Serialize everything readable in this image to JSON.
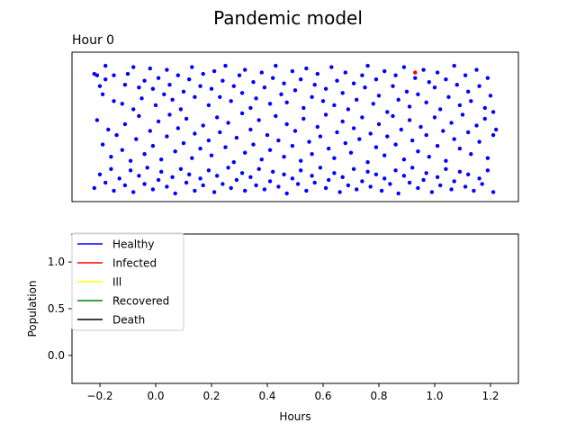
{
  "figure": {
    "title": "Pandemic model"
  },
  "chart_data": [
    {
      "type": "scatter",
      "title": "Hour 0",
      "xlim": [
        -0.3,
        1.3
      ],
      "ylim": [
        -0.05,
        1.05
      ],
      "axes_visible": false,
      "point_colors": {
        "healthy": "#0000ff",
        "infected": "#ff0000"
      },
      "note_points": "Simulated individuals; values are x in [-0.3,1.3], y in [-0.05,1.05]",
      "points": {
        "healthy": [
          [
            -0.22,
            0.89
          ],
          [
            -0.21,
            0.88
          ],
          [
            -0.2,
            0.8
          ],
          [
            -0.19,
            0.74
          ],
          [
            -0.18,
            0.85
          ],
          [
            -0.18,
            0.95
          ],
          [
            -0.15,
            0.88
          ],
          [
            -0.15,
            0.69
          ],
          [
            -0.12,
            0.67
          ],
          [
            -0.11,
            0.81
          ],
          [
            -0.1,
            0.89
          ],
          [
            -0.08,
            0.94
          ],
          [
            -0.08,
            0.63
          ],
          [
            -0.06,
            0.79
          ],
          [
            -0.05,
            0.71
          ],
          [
            -0.04,
            0.84
          ],
          [
            -0.02,
            0.93
          ],
          [
            -0.01,
            0.78
          ],
          [
            0.0,
            0.66
          ],
          [
            0.01,
            0.86
          ],
          [
            0.03,
            0.74
          ],
          [
            0.04,
            0.92
          ],
          [
            0.05,
            0.81
          ],
          [
            0.06,
            0.7
          ],
          [
            0.08,
            0.88
          ],
          [
            0.09,
            0.63
          ],
          [
            0.1,
            0.76
          ],
          [
            0.12,
            0.85
          ],
          [
            0.13,
            0.94
          ],
          [
            0.14,
            0.72
          ],
          [
            0.16,
            0.8
          ],
          [
            0.17,
            0.89
          ],
          [
            0.19,
            0.66
          ],
          [
            0.2,
            0.78
          ],
          [
            0.21,
            0.91
          ],
          [
            0.23,
            0.72
          ],
          [
            0.24,
            0.84
          ],
          [
            0.25,
            0.95
          ],
          [
            0.27,
            0.69
          ],
          [
            0.28,
            0.8
          ],
          [
            0.3,
            0.88
          ],
          [
            0.31,
            0.75
          ],
          [
            0.32,
            0.92
          ],
          [
            0.34,
            0.64
          ],
          [
            0.35,
            0.83
          ],
          [
            0.36,
            0.71
          ],
          [
            0.38,
            0.9
          ],
          [
            0.39,
            0.79
          ],
          [
            0.41,
            0.67
          ],
          [
            0.42,
            0.86
          ],
          [
            0.43,
            0.95
          ],
          [
            0.45,
            0.74
          ],
          [
            0.46,
            0.82
          ],
          [
            0.47,
            0.68
          ],
          [
            0.49,
            0.91
          ],
          [
            0.5,
            0.77
          ],
          [
            0.52,
            0.85
          ],
          [
            0.53,
            0.64
          ],
          [
            0.54,
            0.93
          ],
          [
            0.56,
            0.72
          ],
          [
            0.57,
            0.81
          ],
          [
            0.58,
            0.89
          ],
          [
            0.6,
            0.69
          ],
          [
            0.61,
            0.78
          ],
          [
            0.63,
            0.94
          ],
          [
            0.64,
            0.66
          ],
          [
            0.65,
            0.84
          ],
          [
            0.67,
            0.75
          ],
          [
            0.68,
            0.9
          ],
          [
            0.69,
            0.63
          ],
          [
            0.71,
            0.82
          ],
          [
            0.72,
            0.7
          ],
          [
            0.74,
            0.88
          ],
          [
            0.75,
            0.79
          ],
          [
            0.76,
            0.95
          ],
          [
            0.78,
            0.67
          ],
          [
            0.79,
            0.85
          ],
          [
            0.8,
            0.73
          ],
          [
            0.82,
            0.91
          ],
          [
            0.83,
            0.61
          ],
          [
            0.85,
            0.8
          ],
          [
            0.86,
            0.88
          ],
          [
            0.87,
            0.7
          ],
          [
            0.89,
            0.94
          ],
          [
            0.9,
            0.76
          ],
          [
            0.91,
            0.65
          ],
          [
            0.93,
            0.86
          ],
          [
            0.94,
            0.74
          ],
          [
            0.96,
            0.92
          ],
          [
            0.97,
            0.68
          ],
          [
            0.98,
            0.83
          ],
          [
            1.0,
            0.79
          ],
          [
            1.01,
            0.9
          ],
          [
            1.02,
            0.63
          ],
          [
            1.04,
            0.85
          ],
          [
            1.05,
            0.72
          ],
          [
            1.07,
            0.95
          ],
          [
            1.08,
            0.81
          ],
          [
            1.09,
            0.66
          ],
          [
            1.11,
            0.88
          ],
          [
            1.12,
            0.76
          ],
          [
            1.13,
            0.69
          ],
          [
            1.15,
            0.92
          ],
          [
            1.16,
            0.8
          ],
          [
            1.18,
            0.64
          ],
          [
            1.19,
            0.86
          ],
          [
            1.2,
            0.73
          ],
          [
            1.21,
            0.61
          ],
          [
            -0.21,
            0.55
          ],
          [
            -0.19,
            0.37
          ],
          [
            -0.17,
            0.48
          ],
          [
            -0.16,
            0.28
          ],
          [
            -0.14,
            0.44
          ],
          [
            -0.12,
            0.33
          ],
          [
            -0.11,
            0.52
          ],
          [
            -0.09,
            0.25
          ],
          [
            -0.07,
            0.41
          ],
          [
            -0.06,
            0.58
          ],
          [
            -0.04,
            0.3
          ],
          [
            -0.02,
            0.47
          ],
          [
            -0.01,
            0.36
          ],
          [
            0.01,
            0.54
          ],
          [
            0.02,
            0.26
          ],
          [
            0.04,
            0.43
          ],
          [
            0.05,
            0.59
          ],
          [
            0.07,
            0.32
          ],
          [
            0.08,
            0.49
          ],
          [
            0.1,
            0.38
          ],
          [
            0.11,
            0.56
          ],
          [
            0.13,
            0.27
          ],
          [
            0.14,
            0.45
          ],
          [
            0.16,
            0.34
          ],
          [
            0.17,
            0.51
          ],
          [
            0.19,
            0.4
          ],
          [
            0.2,
            0.29
          ],
          [
            0.22,
            0.57
          ],
          [
            0.23,
            0.46
          ],
          [
            0.25,
            0.35
          ],
          [
            0.26,
            0.53
          ],
          [
            0.28,
            0.24
          ],
          [
            0.29,
            0.42
          ],
          [
            0.31,
            0.6
          ],
          [
            0.32,
            0.31
          ],
          [
            0.34,
            0.48
          ],
          [
            0.35,
            0.37
          ],
          [
            0.37,
            0.55
          ],
          [
            0.38,
            0.26
          ],
          [
            0.4,
            0.44
          ],
          [
            0.41,
            0.33
          ],
          [
            0.43,
            0.58
          ],
          [
            0.44,
            0.4
          ],
          [
            0.46,
            0.28
          ],
          [
            0.47,
            0.52
          ],
          [
            0.49,
            0.36
          ],
          [
            0.5,
            0.47
          ],
          [
            0.52,
            0.25
          ],
          [
            0.53,
            0.56
          ],
          [
            0.55,
            0.39
          ],
          [
            0.56,
            0.3
          ],
          [
            0.58,
            0.5
          ],
          [
            0.59,
            0.43
          ],
          [
            0.61,
            0.59
          ],
          [
            0.62,
            0.34
          ],
          [
            0.64,
            0.27
          ],
          [
            0.65,
            0.46
          ],
          [
            0.67,
            0.54
          ],
          [
            0.68,
            0.38
          ],
          [
            0.7,
            0.31
          ],
          [
            0.71,
            0.49
          ],
          [
            0.73,
            0.41
          ],
          [
            0.74,
            0.57
          ],
          [
            0.76,
            0.24
          ],
          [
            0.77,
            0.45
          ],
          [
            0.79,
            0.35
          ],
          [
            0.8,
            0.52
          ],
          [
            0.82,
            0.29
          ],
          [
            0.83,
            0.43
          ],
          [
            0.85,
            0.58
          ],
          [
            0.86,
            0.37
          ],
          [
            0.88,
            0.48
          ],
          [
            0.89,
            0.26
          ],
          [
            0.91,
            0.55
          ],
          [
            0.92,
            0.4
          ],
          [
            0.94,
            0.32
          ],
          [
            0.95,
            0.5
          ],
          [
            0.97,
            0.44
          ],
          [
            0.98,
            0.28
          ],
          [
            1.0,
            0.57
          ],
          [
            1.01,
            0.36
          ],
          [
            1.03,
            0.47
          ],
          [
            1.04,
            0.25
          ],
          [
            1.06,
            0.53
          ],
          [
            1.07,
            0.41
          ],
          [
            1.09,
            0.34
          ],
          [
            1.1,
            0.59
          ],
          [
            1.12,
            0.46
          ],
          [
            1.13,
            0.3
          ],
          [
            1.15,
            0.51
          ],
          [
            1.16,
            0.39
          ],
          [
            1.18,
            0.56
          ],
          [
            1.19,
            0.27
          ],
          [
            1.21,
            0.44
          ],
          [
            1.22,
            0.48
          ],
          [
            -0.22,
            0.05
          ],
          [
            -0.2,
            0.15
          ],
          [
            -0.18,
            0.09
          ],
          [
            -0.16,
            0.19
          ],
          [
            -0.15,
            0.03
          ],
          [
            -0.13,
            0.12
          ],
          [
            -0.11,
            0.07
          ],
          [
            -0.09,
            0.18
          ],
          [
            -0.08,
            0.02
          ],
          [
            -0.06,
            0.14
          ],
          [
            -0.04,
            0.08
          ],
          [
            -0.03,
            0.2
          ],
          [
            -0.01,
            0.04
          ],
          [
            0.01,
            0.11
          ],
          [
            0.02,
            0.17
          ],
          [
            0.04,
            0.06
          ],
          [
            0.06,
            0.13
          ],
          [
            0.07,
            0.01
          ],
          [
            0.09,
            0.19
          ],
          [
            0.11,
            0.09
          ],
          [
            0.12,
            0.15
          ],
          [
            0.14,
            0.03
          ],
          [
            0.16,
            0.12
          ],
          [
            0.17,
            0.07
          ],
          [
            0.19,
            0.18
          ],
          [
            0.21,
            0.02
          ],
          [
            0.22,
            0.14
          ],
          [
            0.24,
            0.08
          ],
          [
            0.26,
            0.2
          ],
          [
            0.27,
            0.05
          ],
          [
            0.29,
            0.11
          ],
          [
            0.31,
            0.16
          ],
          [
            0.32,
            0.03
          ],
          [
            0.34,
            0.13
          ],
          [
            0.36,
            0.07
          ],
          [
            0.37,
            0.19
          ],
          [
            0.39,
            0.04
          ],
          [
            0.41,
            0.1
          ],
          [
            0.42,
            0.17
          ],
          [
            0.44,
            0.06
          ],
          [
            0.46,
            0.15
          ],
          [
            0.47,
            0.01
          ],
          [
            0.49,
            0.12
          ],
          [
            0.51,
            0.08
          ],
          [
            0.52,
            0.18
          ],
          [
            0.54,
            0.03
          ],
          [
            0.56,
            0.14
          ],
          [
            0.57,
            0.09
          ],
          [
            0.59,
            0.2
          ],
          [
            0.61,
            0.05
          ],
          [
            0.62,
            0.11
          ],
          [
            0.64,
            0.16
          ],
          [
            0.66,
            0.02
          ],
          [
            0.67,
            0.13
          ],
          [
            0.69,
            0.07
          ],
          [
            0.71,
            0.19
          ],
          [
            0.72,
            0.04
          ],
          [
            0.74,
            0.1
          ],
          [
            0.76,
            0.17
          ],
          [
            0.77,
            0.06
          ],
          [
            0.79,
            0.15
          ],
          [
            0.81,
            0.03
          ],
          [
            0.82,
            0.12
          ],
          [
            0.84,
            0.08
          ],
          [
            0.86,
            0.18
          ],
          [
            0.87,
            0.01
          ],
          [
            0.89,
            0.14
          ],
          [
            0.91,
            0.09
          ],
          [
            0.92,
            0.2
          ],
          [
            0.94,
            0.05
          ],
          [
            0.96,
            0.11
          ],
          [
            0.97,
            0.16
          ],
          [
            0.99,
            0.02
          ],
          [
            1.01,
            0.13
          ],
          [
            1.02,
            0.07
          ],
          [
            1.04,
            0.19
          ],
          [
            1.06,
            0.04
          ],
          [
            1.07,
            0.1
          ],
          [
            1.09,
            0.17
          ],
          [
            1.11,
            0.06
          ],
          [
            1.12,
            0.15
          ],
          [
            1.14,
            0.03
          ],
          [
            1.16,
            0.12
          ],
          [
            1.17,
            0.08
          ],
          [
            1.19,
            0.18
          ],
          [
            1.21,
            0.02
          ]
        ],
        "infected": [
          [
            0.93,
            0.9
          ]
        ]
      }
    },
    {
      "type": "line",
      "title": "",
      "xlabel": "Hours",
      "ylabel": "Population",
      "xlim": [
        -0.3,
        1.3
      ],
      "ylim": [
        -0.3,
        1.3
      ],
      "xticks": [
        -0.2,
        0.0,
        0.2,
        0.4,
        0.6,
        0.8,
        1.0,
        1.2
      ],
      "xtick_labels": [
        "−0.2",
        "0.0",
        "0.2",
        "0.4",
        "0.6",
        "0.8",
        "1.0",
        "1.2"
      ],
      "yticks": [
        0.0,
        0.5,
        1.0
      ],
      "ytick_labels": [
        "0.0",
        "0.5",
        "1.0"
      ],
      "legend_position": "top-left",
      "series": [
        {
          "name": "Healthy",
          "color": "#0000ff",
          "x": [],
          "y": []
        },
        {
          "name": "Infected",
          "color": "#ff0000",
          "x": [],
          "y": []
        },
        {
          "name": "Ill",
          "color": "#ffff00",
          "x": [],
          "y": []
        },
        {
          "name": "Recovered",
          "color": "#008000",
          "x": [],
          "y": []
        },
        {
          "name": "Death",
          "color": "#000000",
          "x": [],
          "y": []
        }
      ]
    }
  ]
}
